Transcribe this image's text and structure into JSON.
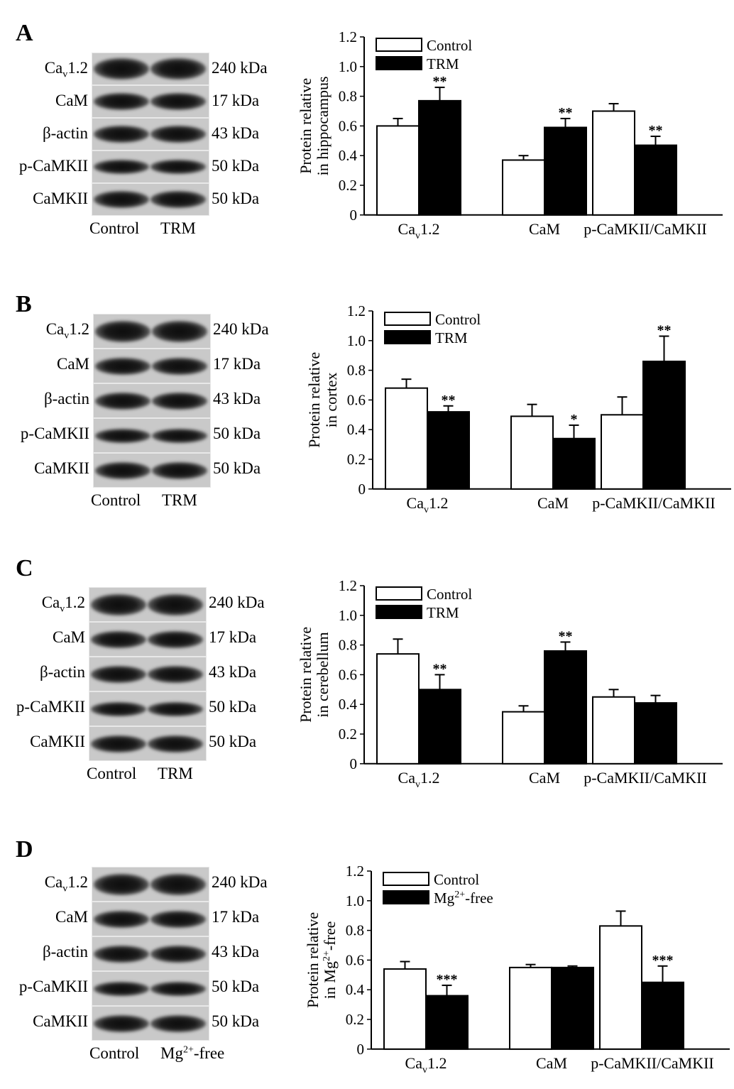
{
  "chart_data": [
    {
      "type": "bar",
      "panel": "A",
      "ylabel": [
        "Protein relative",
        "in hippocampus"
      ],
      "ylim": [
        0,
        1.2
      ],
      "yticks": [
        "0",
        "0.2",
        "0.4",
        "0.6",
        "0.8",
        "1.0",
        "1.2"
      ],
      "categories": [
        {
          "text": "Ca",
          "sub": "v",
          "after": "1.2"
        },
        {
          "text": "CaM"
        },
        {
          "text": "p-CaMKII/CaMKII"
        }
      ],
      "legend": [
        {
          "text": "Control"
        },
        {
          "text": "TRM"
        }
      ],
      "series": [
        {
          "name": "Control",
          "color": "#ffffff",
          "values": [
            0.6,
            0.37,
            0.7
          ],
          "errors": [
            0.05,
            0.03,
            0.05
          ],
          "sig": [
            "",
            "",
            ""
          ]
        },
        {
          "name": "TRM",
          "color": "#000000",
          "values": [
            0.77,
            0.59,
            0.47
          ],
          "errors": [
            0.09,
            0.06,
            0.06
          ],
          "sig": [
            "**",
            "**",
            "**"
          ]
        }
      ]
    },
    {
      "type": "bar",
      "panel": "B",
      "ylabel": [
        "Protein relative",
        "in cortex"
      ],
      "ylim": [
        0,
        1.2
      ],
      "yticks": [
        "0",
        "0.2",
        "0.4",
        "0.6",
        "0.8",
        "1.0",
        "1.2"
      ],
      "categories": [
        {
          "text": "Ca",
          "sub": "v",
          "after": "1.2"
        },
        {
          "text": "CaM"
        },
        {
          "text": "p-CaMKII/CaMKII"
        }
      ],
      "legend": [
        {
          "text": "Control"
        },
        {
          "text": "TRM"
        }
      ],
      "series": [
        {
          "name": "Control",
          "color": "#ffffff",
          "values": [
            0.68,
            0.49,
            0.5
          ],
          "errors": [
            0.06,
            0.08,
            0.12
          ],
          "sig": [
            "",
            "",
            ""
          ]
        },
        {
          "name": "TRM",
          "color": "#000000",
          "values": [
            0.52,
            0.34,
            0.86
          ],
          "errors": [
            0.04,
            0.09,
            0.17
          ],
          "sig": [
            "**",
            "*",
            "**"
          ]
        }
      ]
    },
    {
      "type": "bar",
      "panel": "C",
      "ylabel": [
        "Protein relative",
        "in cerebellum"
      ],
      "ylim": [
        0,
        1.2
      ],
      "yticks": [
        "0",
        "0.2",
        "0.4",
        "0.6",
        "0.8",
        "1.0",
        "1.2"
      ],
      "categories": [
        {
          "text": "Ca",
          "sub": "v",
          "after": "1.2"
        },
        {
          "text": "CaM"
        },
        {
          "text": "p-CaMKII/CaMKII"
        }
      ],
      "legend": [
        {
          "text": "Control"
        },
        {
          "text": "TRM"
        }
      ],
      "series": [
        {
          "name": "Control",
          "color": "#ffffff",
          "values": [
            0.74,
            0.35,
            0.45
          ],
          "errors": [
            0.1,
            0.04,
            0.05
          ],
          "sig": [
            "",
            "",
            ""
          ]
        },
        {
          "name": "TRM",
          "color": "#000000",
          "values": [
            0.5,
            0.76,
            0.41
          ],
          "errors": [
            0.1,
            0.06,
            0.05
          ],
          "sig": [
            "**",
            "**",
            ""
          ]
        }
      ]
    },
    {
      "type": "bar",
      "panel": "D",
      "ylabel": [
        {
          "text": "Protein relative"
        },
        {
          "text": "in Mg",
          "sup": "2+",
          "after": "-free"
        }
      ],
      "ylim": [
        0,
        1.2
      ],
      "yticks": [
        "0",
        "0.2",
        "0.4",
        "0.6",
        "0.8",
        "1.0",
        "1.2"
      ],
      "categories": [
        {
          "text": "Ca",
          "sub": "v",
          "after": "1.2"
        },
        {
          "text": "CaM"
        },
        {
          "text": "p-CaMKII/CaMKII"
        }
      ],
      "legend": [
        {
          "text": "Control"
        },
        {
          "text": "Mg",
          "sup": "2+",
          "after": "-free"
        }
      ],
      "series": [
        {
          "name": "Control",
          "color": "#ffffff",
          "values": [
            0.54,
            0.55,
            0.83
          ],
          "errors": [
            0.05,
            0.02,
            0.1
          ],
          "sig": [
            "",
            "",
            ""
          ]
        },
        {
          "name": "Mg2+-free",
          "color": "#000000",
          "values": [
            0.36,
            0.55,
            0.45
          ],
          "errors": [
            0.07,
            0.01,
            0.11
          ],
          "sig": [
            "***",
            "",
            "***"
          ]
        }
      ]
    }
  ],
  "blots": [
    {
      "letter": "A",
      "rows": [
        {
          "label": "Ca",
          "sub": "v",
          "after": "1.2",
          "kda": "240 kDa"
        },
        {
          "label": "CaM",
          "kda": "17 kDa"
        },
        {
          "label": "β-actin",
          "kda": "43 kDa"
        },
        {
          "label": "p-CaMKII",
          "kda": "50 kDa"
        },
        {
          "label": "CaMKII",
          "kda": "50 kDa"
        }
      ],
      "lanes": [
        {
          "text": "Control"
        },
        {
          "text": "TRM"
        }
      ]
    },
    {
      "letter": "B",
      "rows": [
        {
          "label": "Ca",
          "sub": "v",
          "after": "1.2",
          "kda": "240 kDa"
        },
        {
          "label": "CaM",
          "kda": "17 kDa"
        },
        {
          "label": "β-actin",
          "kda": "43 kDa"
        },
        {
          "label": "p-CaMKII",
          "kda": "50 kDa"
        },
        {
          "label": "CaMKII",
          "kda": "50 kDa"
        }
      ],
      "lanes": [
        {
          "text": "Control"
        },
        {
          "text": "TRM"
        }
      ]
    },
    {
      "letter": "C",
      "rows": [
        {
          "label": "Ca",
          "sub": "v",
          "after": "1.2",
          "kda": "240 kDa"
        },
        {
          "label": "CaM",
          "kda": "17 kDa"
        },
        {
          "label": "β-actin",
          "kda": "43 kDa"
        },
        {
          "label": "p-CaMKII",
          "kda": "50 kDa"
        },
        {
          "label": "CaMKII",
          "kda": "50 kDa"
        }
      ],
      "lanes": [
        {
          "text": "Control"
        },
        {
          "text": "TRM"
        }
      ]
    },
    {
      "letter": "D",
      "rows": [
        {
          "label": "Ca",
          "sub": "v",
          "after": "1.2",
          "kda": "240 kDa"
        },
        {
          "label": "CaM",
          "kda": "17 kDa"
        },
        {
          "label": "β-actin",
          "kda": "43 kDa"
        },
        {
          "label": "p-CaMKII",
          "kda": "50 kDa"
        },
        {
          "label": "CaMKII",
          "kda": "50 kDa"
        }
      ],
      "lanes": [
        {
          "text": "Control"
        },
        {
          "text": "Mg",
          "sup": "2+",
          "after": "-free"
        }
      ]
    }
  ]
}
